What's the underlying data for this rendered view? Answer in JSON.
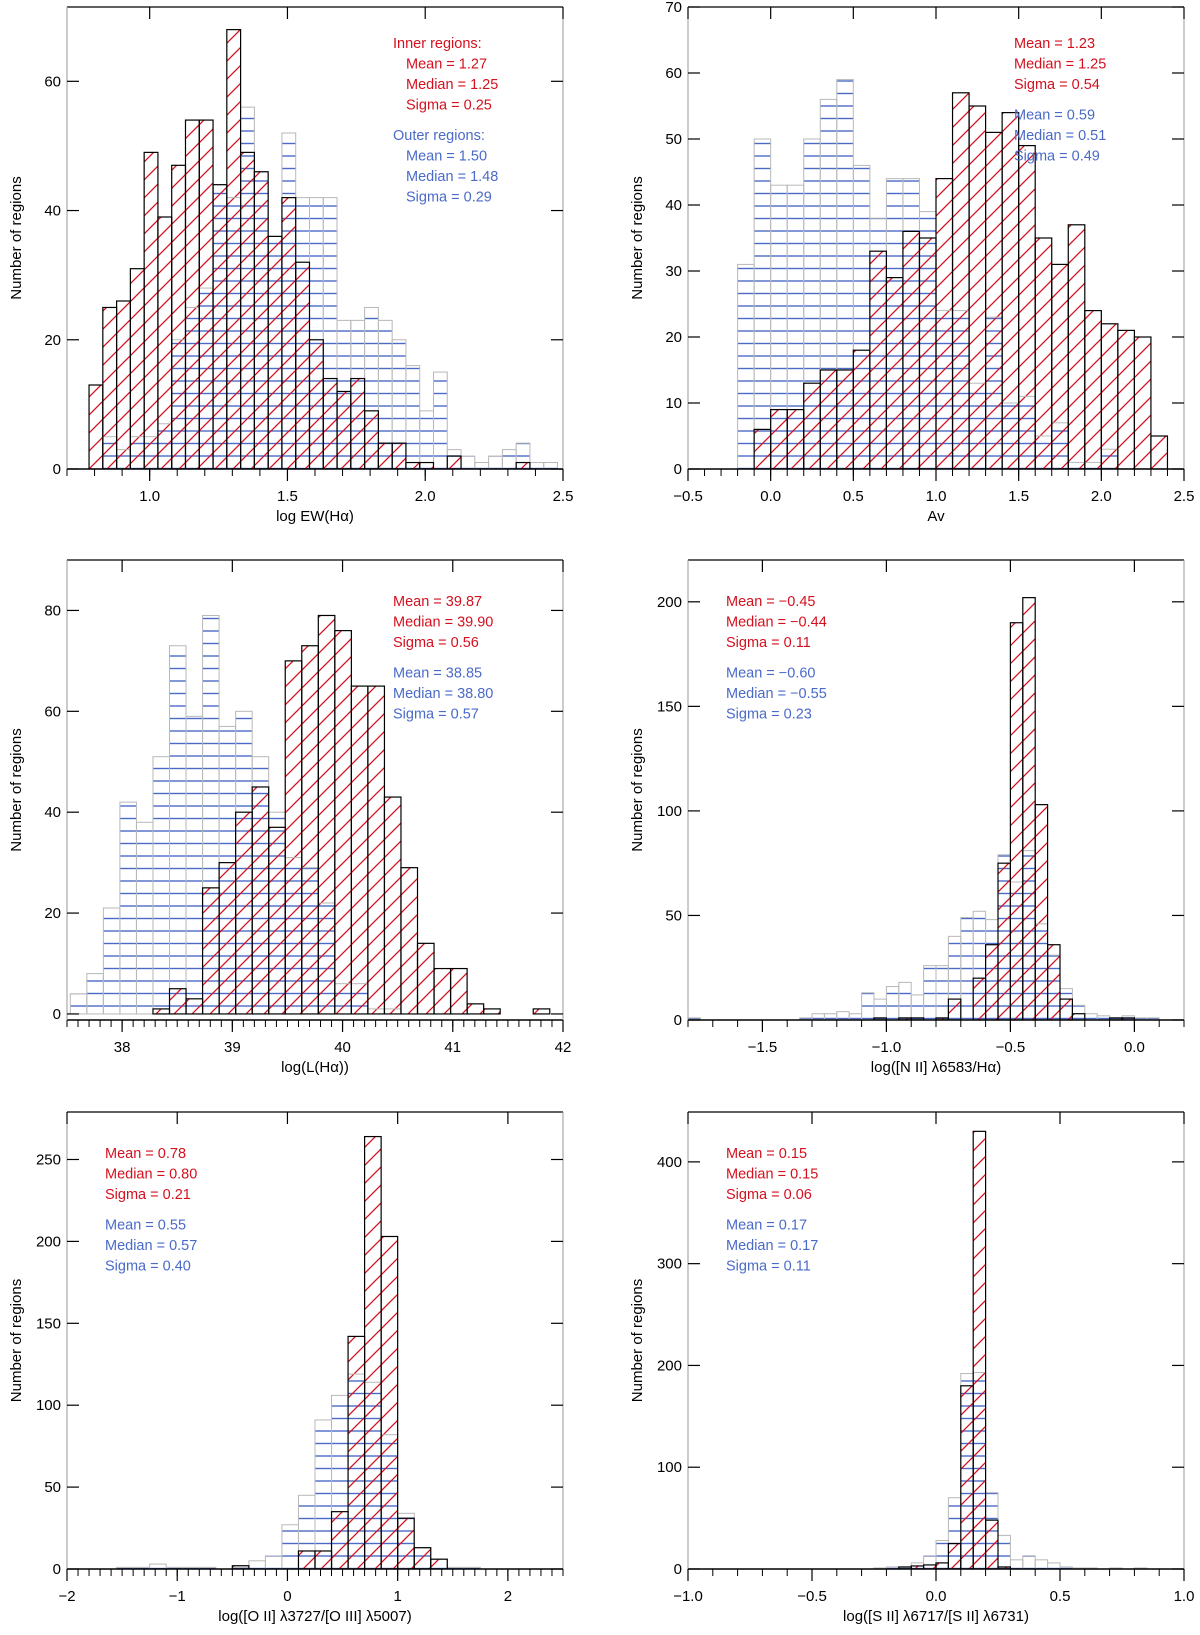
{
  "figure": {
    "colors": {
      "inner": "#d4101e",
      "outer": "#4a6ac8",
      "axis": "#000000",
      "bar_outline": "#000000",
      "bar_outline_light": "#b8b8b8"
    },
    "series_names": [
      "Inner regions",
      "Outer regions"
    ]
  },
  "chart_data": [
    {
      "id": "ew-halpha",
      "type": "bar",
      "subtype": "overlaid-histogram",
      "title": "",
      "xlabel": "log EW(Hα)",
      "ylabel": "Number of regions",
      "xlim": [
        0.7,
        2.5
      ],
      "ylim": [
        0,
        71.5
      ],
      "xticks": [
        1.0,
        1.5,
        2.0,
        2.5
      ],
      "xtick_labels": [
        "1.0",
        "1.5",
        "2.0",
        "2.5"
      ],
      "xminor": 0.1,
      "yticks": [
        0,
        20,
        40,
        60
      ],
      "ytick_labels": [
        "0",
        "20",
        "40",
        "60"
      ],
      "bin_width": 0.05,
      "series": [
        {
          "name": "Inner regions",
          "pattern": "diagonal-hatch",
          "bin_start": 0.78,
          "values": [
            13,
            25,
            26,
            31,
            49,
            39,
            47,
            54,
            54,
            44,
            68,
            49,
            46,
            36,
            42,
            32,
            20,
            14,
            12,
            14,
            9,
            4,
            4,
            1,
            1,
            0,
            2,
            0,
            0,
            0,
            0,
            1
          ]
        },
        {
          "name": "Outer regions",
          "pattern": "horizontal-hatch",
          "bin_start": 0.83,
          "values": [
            5,
            3,
            5,
            5,
            7,
            20,
            25,
            28,
            44,
            42,
            56,
            46,
            36,
            52,
            42,
            42,
            42,
            23,
            23,
            25,
            23,
            20,
            16,
            9,
            15,
            3,
            2,
            1,
            2,
            3,
            4,
            1,
            1
          ]
        }
      ],
      "annotations": {
        "position": "top-right",
        "lines": [
          {
            "text": "Inner regions:",
            "series": "inner",
            "indent": false
          },
          {
            "text": "Mean =  1.27",
            "series": "inner",
            "indent": true
          },
          {
            "text": "Median = 1.25",
            "series": "inner",
            "indent": true
          },
          {
            "text": "Sigma = 0.25",
            "series": "inner",
            "indent": true
          },
          {
            "text": "",
            "series": "gap",
            "indent": false
          },
          {
            "text": "Outer regions:",
            "series": "outer",
            "indent": false
          },
          {
            "text": "Mean =  1.50",
            "series": "outer",
            "indent": true
          },
          {
            "text": "Median = 1.48",
            "series": "outer",
            "indent": true
          },
          {
            "text": "Sigma = 0.29",
            "series": "outer",
            "indent": true
          }
        ]
      }
    },
    {
      "id": "av",
      "type": "bar",
      "subtype": "overlaid-histogram",
      "title": "",
      "xlabel": "Av",
      "ylabel": "Number of regions",
      "xlim": [
        -0.5,
        2.5
      ],
      "ylim": [
        0,
        70
      ],
      "xticks": [
        -0.5,
        0.0,
        0.5,
        1.0,
        1.5,
        2.0,
        2.5
      ],
      "xtick_labels": [
        "−0.5",
        "0.0",
        "0.5",
        "1.0",
        "1.5",
        "2.0",
        "2.5"
      ],
      "xminor": 0.1,
      "yticks": [
        0,
        10,
        20,
        30,
        40,
        50,
        60,
        70
      ],
      "ytick_labels": [
        "0",
        "10",
        "20",
        "30",
        "40",
        "50",
        "60",
        "70"
      ],
      "bin_width": 0.1,
      "series": [
        {
          "name": "Inner regions",
          "pattern": "diagonal-hatch",
          "bin_start": -0.1,
          "values": [
            6,
            9,
            9,
            13,
            15,
            15,
            18,
            33,
            29,
            36,
            35,
            44,
            57,
            55,
            51,
            54,
            49,
            35,
            31,
            37,
            24,
            22,
            21,
            20,
            5
          ]
        },
        {
          "name": "Outer regions",
          "pattern": "horizontal-hatch",
          "bin_start": -0.2,
          "values": [
            31,
            50,
            43,
            43,
            50,
            56,
            59,
            46,
            38,
            44,
            44,
            39,
            24,
            24,
            13,
            23,
            10,
            11,
            5,
            7,
            1,
            1,
            3
          ]
        }
      ],
      "annotations": {
        "position": "top-right",
        "lines": [
          {
            "text": "Mean =  1.23",
            "series": "inner",
            "indent": false
          },
          {
            "text": "Median = 1.25",
            "series": "inner",
            "indent": false
          },
          {
            "text": "Sigma = 0.54",
            "series": "inner",
            "indent": false
          },
          {
            "text": "",
            "series": "gap",
            "indent": false
          },
          {
            "text": "Mean =  0.59",
            "series": "outer",
            "indent": false
          },
          {
            "text": "Median = 0.51",
            "series": "outer",
            "indent": false
          },
          {
            "text": "Sigma = 0.49",
            "series": "outer",
            "indent": false
          }
        ]
      }
    },
    {
      "id": "l-halpha",
      "type": "bar",
      "subtype": "overlaid-histogram",
      "title": "",
      "xlabel": "log(L(Hα))",
      "ylabel": "Number of regions",
      "xlim": [
        37.5,
        42.0
      ],
      "ylim": [
        -1.2,
        90
      ],
      "xticks": [
        38,
        39,
        40,
        41,
        42
      ],
      "xtick_labels": [
        "38",
        "39",
        "40",
        "41",
        "42"
      ],
      "xminor": 0.1,
      "yticks": [
        0,
        20,
        40,
        60,
        80
      ],
      "ytick_labels": [
        "0",
        "20",
        "40",
        "60",
        "80"
      ],
      "bin_width": 0.15,
      "series": [
        {
          "name": "Inner regions",
          "pattern": "diagonal-hatch",
          "bin_start": 38.28,
          "values": [
            1,
            5,
            3,
            25,
            30,
            40,
            45,
            37,
            70,
            73,
            79,
            76,
            65,
            65,
            43,
            29,
            14,
            9,
            9,
            2,
            1,
            0,
            0,
            1
          ]
        },
        {
          "name": "Outer regions",
          "pattern": "horizontal-hatch",
          "bin_start": 37.53,
          "values": [
            4,
            8,
            21,
            42,
            38,
            51,
            73,
            59,
            79,
            57,
            60,
            51,
            40,
            31,
            29,
            22,
            6,
            6,
            1,
            1
          ]
        }
      ],
      "annotations": {
        "position": "top-right",
        "lines": [
          {
            "text": "Mean =  39.87",
            "series": "inner",
            "indent": false
          },
          {
            "text": "Median = 39.90",
            "series": "inner",
            "indent": false
          },
          {
            "text": "Sigma = 0.56",
            "series": "inner",
            "indent": false
          },
          {
            "text": "",
            "series": "gap",
            "indent": false
          },
          {
            "text": "Mean =  38.85",
            "series": "outer",
            "indent": false
          },
          {
            "text": "Median = 38.80",
            "series": "outer",
            "indent": false
          },
          {
            "text": "Sigma = 0.57",
            "series": "outer",
            "indent": false
          }
        ]
      }
    },
    {
      "id": "nii-halpha",
      "type": "bar",
      "subtype": "overlaid-histogram",
      "title": "",
      "xlabel": "log([N II] λ6583/Hα)",
      "ylabel": "Number of regions",
      "xlim": [
        -1.8,
        0.2
      ],
      "ylim": [
        0,
        220
      ],
      "xticks": [
        -1.5,
        -1.0,
        -0.5,
        0.0
      ],
      "xtick_labels": [
        "−1.5",
        "−1.0",
        "−0.5",
        "0.0"
      ],
      "xminor": 0.1,
      "yticks": [
        0,
        50,
        100,
        150,
        200
      ],
      "ytick_labels": [
        "0",
        "50",
        "100",
        "150",
        "200"
      ],
      "bin_width": 0.05,
      "series": [
        {
          "name": "Inner regions",
          "pattern": "diagonal-hatch",
          "bin_start": -1.05,
          "values": [
            1,
            0,
            1,
            1,
            0,
            1,
            10,
            0,
            20,
            36,
            75,
            190,
            202,
            103,
            36,
            10,
            3,
            0,
            0,
            1,
            1
          ]
        },
        {
          "name": "Outer regions",
          "pattern": "horizontal-hatch",
          "bin_start": -1.8,
          "values": [
            1,
            0,
            0,
            0,
            0,
            0,
            0,
            0,
            0,
            1,
            3,
            3,
            4,
            3,
            13,
            10,
            16,
            18,
            12,
            26,
            26,
            40,
            49,
            52,
            48,
            79,
            66,
            81,
            46,
            31,
            15,
            7,
            3,
            2,
            1,
            2,
            1,
            1
          ]
        }
      ],
      "annotations": {
        "position": "top-left",
        "lines": [
          {
            "text": "Mean = −0.45",
            "series": "inner",
            "indent": false
          },
          {
            "text": "Median = −0.44",
            "series": "inner",
            "indent": false
          },
          {
            "text": "Sigma = 0.11",
            "series": "inner",
            "indent": false
          },
          {
            "text": "",
            "series": "gap",
            "indent": false
          },
          {
            "text": "Mean =  −0.60",
            "series": "outer",
            "indent": false
          },
          {
            "text": "Median = −0.55",
            "series": "outer",
            "indent": false
          },
          {
            "text": "Sigma = 0.23",
            "series": "outer",
            "indent": false
          }
        ]
      }
    },
    {
      "id": "oii-oiii",
      "type": "bar",
      "subtype": "overlaid-histogram",
      "title": "",
      "xlabel": "log([O II] λ3727/[O III] λ5007)",
      "ylabel": "Number of regions",
      "xlim": [
        -2,
        2.5
      ],
      "ylim": [
        0,
        279
      ],
      "xticks": [
        -2,
        -1,
        0,
        1,
        2
      ],
      "xtick_labels": [
        "−2",
        "−1",
        "0",
        "1",
        "2"
      ],
      "xminor": 0.1,
      "yticks": [
        0,
        50,
        100,
        150,
        200,
        250
      ],
      "ytick_labels": [
        "0",
        "50",
        "100",
        "150",
        "200",
        "250"
      ],
      "bin_width": 0.15,
      "series": [
        {
          "name": "Inner regions",
          "pattern": "diagonal-hatch",
          "bin_start": -0.5,
          "values": [
            2,
            0,
            0,
            0,
            11,
            11,
            35,
            142,
            264,
            203,
            31,
            13,
            6
          ]
        },
        {
          "name": "Outer regions",
          "pattern": "horizontal-hatch",
          "bin_start": -1.55,
          "values": [
            1,
            1,
            3,
            1,
            1,
            1,
            0,
            1,
            5,
            8,
            27,
            45,
            91,
            106,
            119,
            114,
            82,
            34,
            13,
            6,
            1,
            1
          ]
        }
      ],
      "annotations": {
        "position": "top-left",
        "lines": [
          {
            "text": "Mean = 0.78",
            "series": "inner",
            "indent": false
          },
          {
            "text": "Median = 0.80",
            "series": "inner",
            "indent": false
          },
          {
            "text": "Sigma = 0.21",
            "series": "inner",
            "indent": false
          },
          {
            "text": "",
            "series": "gap",
            "indent": false
          },
          {
            "text": "Mean = 0.55",
            "series": "outer",
            "indent": false
          },
          {
            "text": "Median = 0.57",
            "series": "outer",
            "indent": false
          },
          {
            "text": "Sigma = 0.40",
            "series": "outer",
            "indent": false
          }
        ]
      }
    },
    {
      "id": "sii-sii",
      "type": "bar",
      "subtype": "overlaid-histogram",
      "title": "",
      "xlabel": "log([S II] λ6717/[S II] λ6731)",
      "ylabel": "Number of regions",
      "xlim": [
        -1.0,
        1.0
      ],
      "ylim": [
        0,
        449
      ],
      "xticks": [
        -1.0,
        -0.5,
        0.0,
        0.5,
        1.0
      ],
      "xtick_labels": [
        "−1.0",
        "−0.5",
        "0.0",
        "0.5",
        "1.0"
      ],
      "xminor": 0.1,
      "yticks": [
        0,
        100,
        200,
        300,
        400
      ],
      "ytick_labels": [
        "0",
        "100",
        "200",
        "300",
        "400"
      ],
      "bin_width": 0.05,
      "series": [
        {
          "name": "Inner regions",
          "pattern": "diagonal-hatch",
          "bin_start": -0.15,
          "values": [
            2,
            3,
            4,
            6,
            25,
            180,
            430,
            48,
            2
          ]
        },
        {
          "name": "Outer regions",
          "pattern": "horizontal-hatch",
          "bin_start": -0.25,
          "values": [
            1,
            2,
            2,
            6,
            13,
            28,
            70,
            192,
            193,
            75,
            33,
            9,
            13,
            9,
            6,
            2,
            1,
            1,
            0,
            1,
            0,
            1
          ]
        }
      ],
      "annotations": {
        "position": "top-left",
        "lines": [
          {
            "text": "Mean = 0.15",
            "series": "inner",
            "indent": false
          },
          {
            "text": "Median = 0.15",
            "series": "inner",
            "indent": false
          },
          {
            "text": "Sigma = 0.06",
            "series": "inner",
            "indent": false
          },
          {
            "text": "",
            "series": "gap",
            "indent": false
          },
          {
            "text": "Mean = 0.17",
            "series": "outer",
            "indent": false
          },
          {
            "text": "Median = 0.17",
            "series": "outer",
            "indent": false
          },
          {
            "text": "Sigma = 0.11",
            "series": "outer",
            "indent": false
          }
        ]
      }
    }
  ]
}
